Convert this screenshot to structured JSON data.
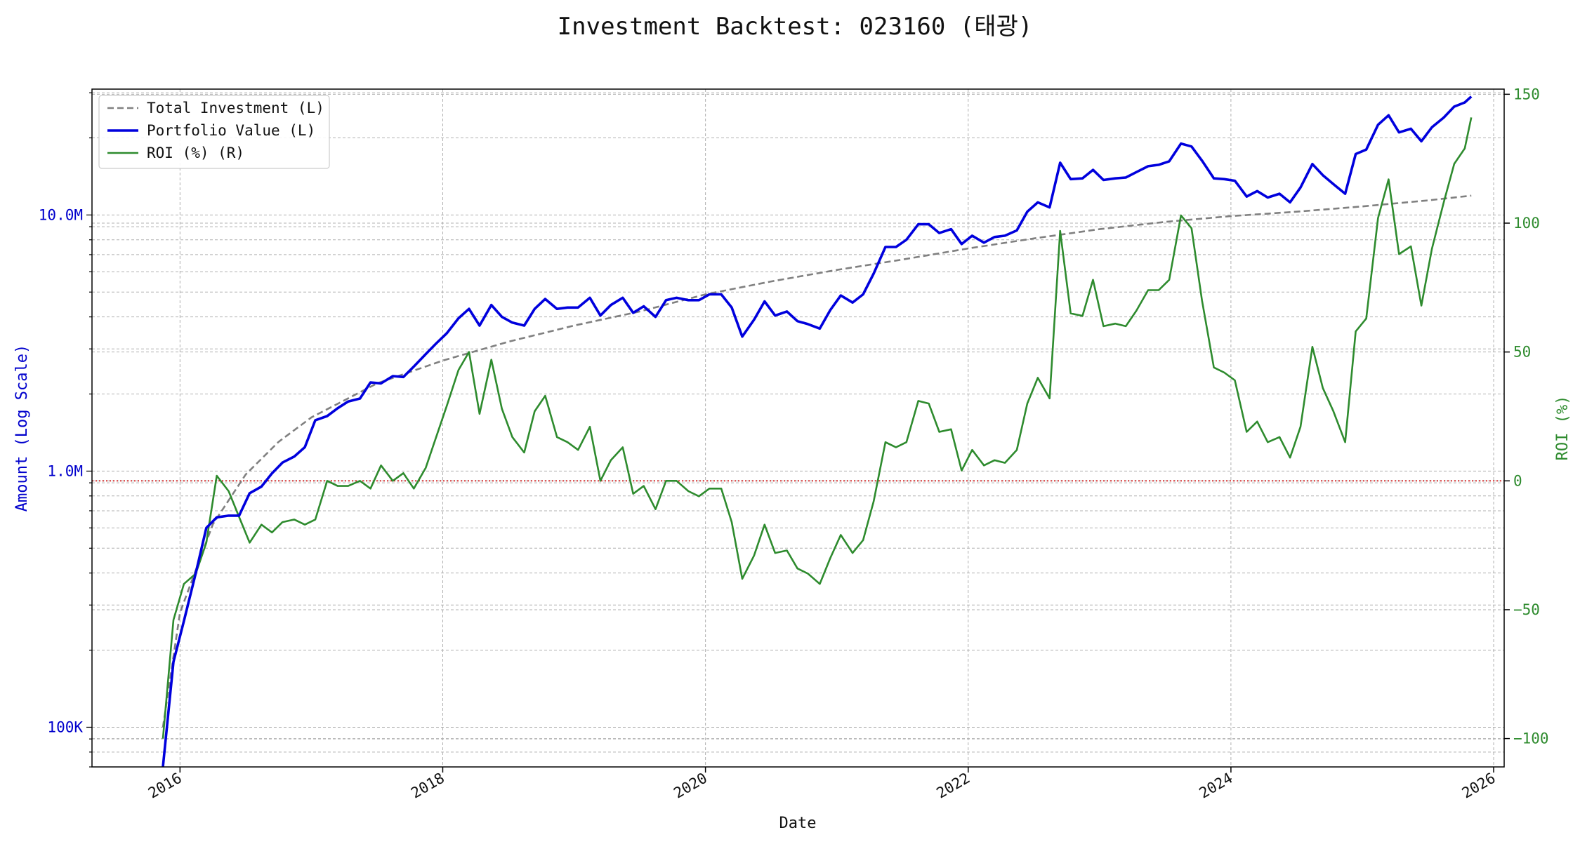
{
  "chart_data": {
    "type": "line",
    "title": "Investment Backtest: 023160 (태광)",
    "xlabel": "Date",
    "ylabel_left": "Amount (Log Scale)",
    "ylabel_right": "ROI (%)",
    "x_range": [
      2015.33,
      2026.08
    ],
    "ylim_left": [
      70000,
      31000000
    ],
    "ylim_left_scale": "log",
    "ylim_right": [
      -111,
      152
    ],
    "x_ticks": [
      2016,
      2018,
      2020,
      2022,
      2024,
      2026
    ],
    "x_tick_labels": [
      "2016",
      "2018",
      "2020",
      "2022",
      "2024",
      "2026"
    ],
    "y_left_ticks": [
      100000,
      1000000,
      10000000
    ],
    "y_left_tick_labels": [
      "100K",
      "1.0M",
      "10.0M"
    ],
    "y_right_ticks": [
      -100,
      -50,
      0,
      50,
      100,
      150
    ],
    "y_right_tick_labels": [
      "−100",
      "−50",
      "0",
      "50",
      "100",
      "150"
    ],
    "grid": true,
    "legend_position": "top-left",
    "reference_line": {
      "axis": "right",
      "value": 0,
      "color": "#cc0000",
      "style": "dotted"
    },
    "colors": {
      "investment": "#808080",
      "portfolio": "#0000dd",
      "roi": "#2e8b2e",
      "left_axis": "#0000cc",
      "right_axis": "#2e8b2e"
    },
    "legend": [
      {
        "label": "Total Investment (L)",
        "color": "#808080",
        "style": "dashed"
      },
      {
        "label": "Portfolio Value (L)",
        "color": "#0000dd",
        "style": "solid-bold"
      },
      {
        "label": "ROI (%) (R)",
        "color": "#2e8b2e",
        "style": "solid"
      }
    ],
    "series": [
      {
        "name": "Total Investment (L)",
        "axis": "left",
        "x": [
          2015.87,
          2016.0,
          2016.25,
          2016.5,
          2016.75,
          2017.0,
          2017.5,
          2018.0,
          2018.5,
          2019.0,
          2019.5,
          2020.0,
          2020.5,
          2021.0,
          2021.5,
          2022.0,
          2022.5,
          2023.0,
          2023.5,
          2024.0,
          2024.5,
          2025.0,
          2025.5,
          2025.83
        ],
        "y": [
          100000,
          280000,
          620000,
          970000,
          1300000,
          1620000,
          2200000,
          2700000,
          3200000,
          3700000,
          4200000,
          4900000,
          5500000,
          6100000,
          6700000,
          7400000,
          8100000,
          8800000,
          9400000,
          9900000,
          10300000,
          10800000,
          11400000,
          11900000
        ]
      },
      {
        "name": "Portfolio Value (L)",
        "axis": "left",
        "x": [
          2015.87,
          2015.95,
          2016.03,
          2016.12,
          2016.2,
          2016.28,
          2016.37,
          2016.45,
          2016.53,
          2016.62,
          2016.7,
          2016.78,
          2016.87,
          2016.95,
          2017.03,
          2017.12,
          2017.2,
          2017.28,
          2017.37,
          2017.45,
          2017.53,
          2017.62,
          2017.7,
          2017.78,
          2017.87,
          2017.95,
          2018.03,
          2018.12,
          2018.2,
          2018.28,
          2018.37,
          2018.45,
          2018.53,
          2018.62,
          2018.7,
          2018.78,
          2018.87,
          2018.95,
          2019.03,
          2019.12,
          2019.2,
          2019.28,
          2019.37,
          2019.45,
          2019.53,
          2019.62,
          2019.7,
          2019.78,
          2019.87,
          2019.95,
          2020.03,
          2020.12,
          2020.2,
          2020.28,
          2020.37,
          2020.45,
          2020.53,
          2020.62,
          2020.7,
          2020.78,
          2020.87,
          2020.95,
          2021.03,
          2021.12,
          2021.2,
          2021.28,
          2021.37,
          2021.45,
          2021.53,
          2021.62,
          2021.7,
          2021.78,
          2021.87,
          2021.95,
          2022.03,
          2022.12,
          2022.2,
          2022.28,
          2022.37,
          2022.45,
          2022.53,
          2022.62,
          2022.7,
          2022.78,
          2022.87,
          2022.95,
          2023.03,
          2023.12,
          2023.2,
          2023.28,
          2023.37,
          2023.45,
          2023.53,
          2023.62,
          2023.7,
          2023.78,
          2023.87,
          2023.95,
          2024.03,
          2024.12,
          2024.2,
          2024.28,
          2024.37,
          2024.45,
          2024.53,
          2024.62,
          2024.7,
          2024.78,
          2024.87,
          2024.95,
          2025.03,
          2025.12,
          2025.2,
          2025.28,
          2025.37,
          2025.45,
          2025.53,
          2025.62,
          2025.7,
          2025.78,
          2025.83
        ],
        "y": [
          70000,
          180000,
          260000,
          400000,
          600000,
          660000,
          670000,
          670000,
          820000,
          870000,
          980000,
          1080000,
          1140000,
          1240000,
          1580000,
          1640000,
          1760000,
          1870000,
          1920000,
          2220000,
          2200000,
          2350000,
          2330000,
          2560000,
          2860000,
          3150000,
          3450000,
          3950000,
          4300000,
          3700000,
          4450000,
          4000000,
          3800000,
          3700000,
          4300000,
          4700000,
          4300000,
          4350000,
          4350000,
          4750000,
          4050000,
          4450000,
          4750000,
          4150000,
          4400000,
          4000000,
          4650000,
          4750000,
          4650000,
          4650000,
          4900000,
          4900000,
          4350000,
          3350000,
          3900000,
          4600000,
          4050000,
          4200000,
          3850000,
          3750000,
          3600000,
          4250000,
          4850000,
          4550000,
          4900000,
          5900000,
          7500000,
          7500000,
          8000000,
          9200000,
          9200000,
          8500000,
          8800000,
          7700000,
          8300000,
          7800000,
          8200000,
          8300000,
          8700000,
          10300000,
          11200000,
          10700000,
          16000000,
          13800000,
          13900000,
          15000000,
          13700000,
          13900000,
          14000000,
          14700000,
          15500000,
          15700000,
          16200000,
          19000000,
          18500000,
          16300000,
          13900000,
          13800000,
          13600000,
          11800000,
          12400000,
          11700000,
          12100000,
          11200000,
          12800000,
          15800000,
          14300000,
          13200000,
          12100000,
          17300000,
          18000000,
          22500000,
          24500000,
          21000000,
          21700000,
          19400000,
          22000000,
          24000000,
          26500000,
          27500000,
          29000000
        ]
      },
      {
        "name": "ROI (%) (R)",
        "axis": "right",
        "x": [
          2015.87,
          2015.95,
          2016.03,
          2016.12,
          2016.2,
          2016.28,
          2016.37,
          2016.45,
          2016.53,
          2016.62,
          2016.7,
          2016.78,
          2016.87,
          2016.95,
          2017.03,
          2017.12,
          2017.2,
          2017.28,
          2017.37,
          2017.45,
          2017.53,
          2017.62,
          2017.7,
          2017.78,
          2017.87,
          2017.95,
          2018.03,
          2018.12,
          2018.2,
          2018.28,
          2018.37,
          2018.45,
          2018.53,
          2018.62,
          2018.7,
          2018.78,
          2018.87,
          2018.95,
          2019.03,
          2019.12,
          2019.2,
          2019.28,
          2019.37,
          2019.45,
          2019.53,
          2019.62,
          2019.7,
          2019.78,
          2019.87,
          2019.95,
          2020.03,
          2020.12,
          2020.2,
          2020.28,
          2020.37,
          2020.45,
          2020.53,
          2020.62,
          2020.7,
          2020.78,
          2020.87,
          2020.95,
          2021.03,
          2021.12,
          2021.2,
          2021.28,
          2021.37,
          2021.45,
          2021.53,
          2021.62,
          2021.7,
          2021.78,
          2021.87,
          2021.95,
          2022.03,
          2022.12,
          2022.2,
          2022.28,
          2022.37,
          2022.45,
          2022.53,
          2022.62,
          2022.7,
          2022.78,
          2022.87,
          2022.95,
          2023.03,
          2023.12,
          2023.2,
          2023.28,
          2023.37,
          2023.45,
          2023.53,
          2023.62,
          2023.7,
          2023.78,
          2023.87,
          2023.95,
          2024.03,
          2024.12,
          2024.2,
          2024.28,
          2024.37,
          2024.45,
          2024.53,
          2024.62,
          2024.7,
          2024.78,
          2024.87,
          2024.95,
          2025.03,
          2025.12,
          2025.2,
          2025.28,
          2025.37,
          2025.45,
          2025.53,
          2025.62,
          2025.7,
          2025.78,
          2025.83
        ],
        "y": [
          -100,
          -54,
          -40,
          -36,
          -24,
          2,
          -4,
          -14,
          -24,
          -17,
          -20,
          -16,
          -15,
          -17,
          -15,
          0,
          -2,
          -2,
          0,
          -3,
          6,
          0,
          3,
          -3,
          5,
          17,
          29,
          43,
          50,
          26,
          47,
          28,
          17,
          11,
          27,
          33,
          17,
          15,
          12,
          21,
          0,
          8,
          13,
          -5,
          -2,
          -11,
          0,
          0,
          -4,
          -6,
          -3,
          -3,
          -16,
          -38,
          -29,
          -17,
          -28,
          -27,
          -34,
          -36,
          -40,
          -30,
          -21,
          -28,
          -23,
          -8,
          15,
          13,
          15,
          31,
          30,
          19,
          20,
          4,
          12,
          6,
          8,
          7,
          12,
          30,
          40,
          32,
          97,
          65,
          64,
          78,
          60,
          61,
          60,
          66,
          74,
          74,
          78,
          103,
          98,
          70,
          44,
          42,
          39,
          19,
          23,
          15,
          17,
          9,
          21,
          52,
          36,
          27,
          15,
          58,
          63,
          102,
          117,
          88,
          91,
          68,
          90,
          108,
          123,
          129,
          141
        ]
      }
    ]
  }
}
